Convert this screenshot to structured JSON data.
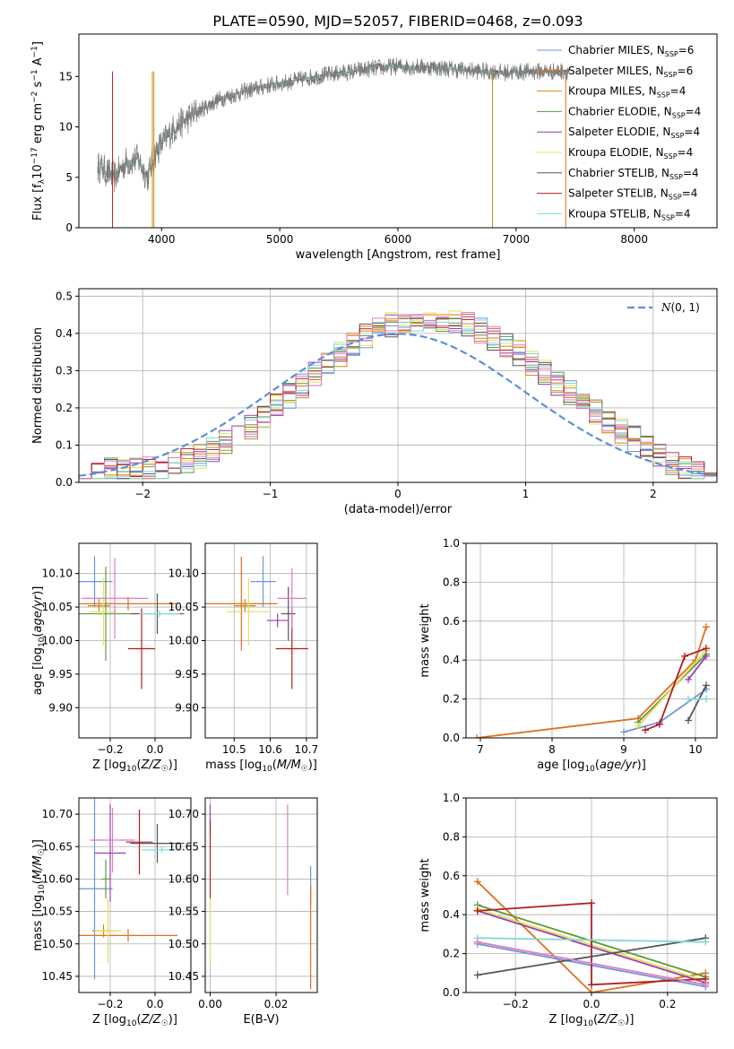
{
  "figure": {
    "title": "PLATE=0590, MJD=52057, FIBERID=0468, z=0.093"
  },
  "palette": {
    "Chabrier MILES": "#6f96d8",
    "Salpeter MILES": "#e06f1f",
    "Kroupa MILES": "#d08a0f",
    "Chabrier ELODIE": "#5b9b3a",
    "Salpeter ELODIE": "#9a3fb0",
    "Kroupa ELODIE": "#e3e05a",
    "Chabrier STELIB": "#555555",
    "Salpeter STELIB": "#b01f1f",
    "Kroupa STELIB": "#7fd8d8",
    "pink": "#e07bc4",
    "gaussian": "#5b8fd8"
  },
  "chart_data": [
    {
      "id": "spectrum",
      "type": "line",
      "title": "PLATE=0590, MJD=52057, FIBERID=0468, z=0.093",
      "xlabel": "wavelength [Angstrom, rest frame]",
      "ylabel": "Flux [f_λ 10^-17 erg cm^-2 s^-1 A^-1]",
      "xlim": [
        3300,
        8700
      ],
      "ylim": [
        0,
        19.2
      ],
      "xticks": [
        4000,
        5000,
        6000,
        7000,
        8000
      ],
      "yticks": [
        0,
        5,
        10,
        15
      ],
      "grid": false,
      "legend_position": "top-right",
      "legend": [
        {
          "name": "Chabrier MILES",
          "nssp": "6"
        },
        {
          "name": "Salpeter MILES",
          "nssp": "6"
        },
        {
          "name": "Kroupa MILES",
          "nssp": "4"
        },
        {
          "name": "Chabrier ELODIE",
          "nssp": "4"
        },
        {
          "name": "Salpeter ELODIE",
          "nssp": "4"
        },
        {
          "name": "Kroupa ELODIE",
          "nssp": "4"
        },
        {
          "name": "Chabrier STELIB",
          "nssp": "4"
        },
        {
          "name": "Salpeter STELIB",
          "nssp": "4"
        },
        {
          "name": "Kroupa STELIB",
          "nssp": "4"
        }
      ],
      "continuum_knots": [
        [
          3480,
          6.0
        ],
        [
          3600,
          5.0
        ],
        [
          3700,
          6.5
        ],
        [
          3800,
          6.8
        ],
        [
          3880,
          5.0
        ],
        [
          3950,
          7.5
        ],
        [
          4100,
          9.8
        ],
        [
          4300,
          11.5
        ],
        [
          4500,
          12.8
        ],
        [
          4700,
          13.5
        ],
        [
          4900,
          14.1
        ],
        [
          5100,
          14.5
        ],
        [
          5300,
          15.0
        ],
        [
          5500,
          15.3
        ],
        [
          5800,
          15.8
        ],
        [
          6000,
          16.0
        ],
        [
          6300,
          15.9
        ],
        [
          6600,
          15.6
        ],
        [
          6900,
          15.4
        ],
        [
          7200,
          15.5
        ],
        [
          7450,
          15.5
        ]
      ],
      "model_spikes": [
        [
          3585,
          "Salpeter STELIB"
        ],
        [
          3922,
          "Kroupa MILES"
        ],
        [
          3935,
          "Kroupa MILES"
        ],
        [
          6800,
          "Kroupa MILES"
        ],
        [
          7420,
          "Salpeter MILES"
        ]
      ],
      "x_end_of_data": 7450
    },
    {
      "id": "residuals",
      "type": "line",
      "xlabel": "(data-model)/error",
      "ylabel": "Normed distribution",
      "xlim": [
        -2.5,
        2.5
      ],
      "ylim": [
        0,
        0.52
      ],
      "xticks": [
        -2,
        -1,
        0,
        1,
        2
      ],
      "yticks": [
        0.0,
        0.1,
        0.2,
        0.3,
        0.4,
        0.5
      ],
      "grid": true,
      "legend_position": "top-right",
      "legend_label": "N(0,1)",
      "bin_width": 0.1,
      "gaussian": {
        "mean": 0,
        "sigma": 1
      },
      "histogram_peaks": [
        0.42,
        0.45,
        0.44,
        0.43,
        0.45,
        0.46,
        0.44,
        0.42,
        0.43,
        0.45,
        0.49
      ]
    },
    {
      "id": "age-vs-Z",
      "type": "scatter",
      "xlabel": "Z [log10(Z/Z☉)]",
      "ylabel": "age [log10(age/yr)]",
      "xlim": [
        -0.34,
        0.16
      ],
      "ylim": [
        9.855,
        10.145
      ],
      "xticks": [
        -0.2,
        0.0
      ],
      "yticks": [
        9.9,
        9.95,
        10.0,
        10.05,
        10.1
      ],
      "grid": true,
      "points": [
        {
          "model": "Chabrier MILES",
          "x": -0.27,
          "y": 10.088,
          "xerr": 0.08,
          "yerr": 0.038
        },
        {
          "model": "Salpeter MILES",
          "x": -0.12,
          "y": 10.055,
          "xerr": 0.22,
          "yerr": 0.01
        },
        {
          "model": "Kroupa MILES",
          "x": -0.25,
          "y": 10.052,
          "xerr": 0.05,
          "yerr": 0.01
        },
        {
          "model": "Chabrier ELODIE",
          "x": -0.22,
          "y": 10.04,
          "xerr": 0.14,
          "yerr": 0.07
        },
        {
          "model": "Kroupa ELODIE",
          "x": -0.23,
          "y": 10.043,
          "xerr": 0.06,
          "yerr": 0.05
        },
        {
          "model": "Chabrier STELIB",
          "x": 0.01,
          "y": 10.04,
          "xerr": 0.12,
          "yerr": 0.03
        },
        {
          "model": "Salpeter STELIB",
          "x": -0.06,
          "y": 9.988,
          "xerr": 0.06,
          "yerr": 0.06
        },
        {
          "model": "Kroupa STELIB",
          "x": 0.02,
          "y": 10.04,
          "xerr": 0.09,
          "yerr": 0.005
        },
        {
          "model": "pink",
          "x": -0.18,
          "y": 10.063,
          "xerr": 0.15,
          "yerr": 0.06
        }
      ]
    },
    {
      "id": "age-vs-mass",
      "type": "scatter",
      "xlabel": "mass [log10(M/M☉)]",
      "ylabel": "",
      "xlim": [
        10.42,
        10.73
      ],
      "ylim": [
        9.855,
        10.145
      ],
      "xticks": [
        10.5,
        10.6,
        10.7
      ],
      "yticks": [
        9.9,
        9.95,
        10.0,
        10.05,
        10.1
      ],
      "grid": true,
      "points": [
        {
          "model": "Chabrier MILES",
          "x": 10.58,
          "y": 10.088,
          "xerr": 0.035,
          "yerr": 0.038
        },
        {
          "model": "Salpeter MILES",
          "x": 10.52,
          "y": 10.055,
          "xerr": 0.1,
          "yerr": 0.07
        },
        {
          "model": "Kroupa MILES",
          "x": 10.53,
          "y": 10.052,
          "xerr": 0.03,
          "yerr": 0.01
        },
        {
          "model": "Kroupa ELODIE",
          "x": 10.54,
          "y": 10.043,
          "xerr": 0.06,
          "yerr": 0.05
        },
        {
          "model": "Chabrier STELIB",
          "x": 10.65,
          "y": 10.04,
          "xerr": 0.02,
          "yerr": 0.04
        },
        {
          "model": "Salpeter STELIB",
          "x": 10.66,
          "y": 9.988,
          "xerr": 0.045,
          "yerr": 0.06
        },
        {
          "model": "Salpeter ELODIE",
          "x": 10.62,
          "y": 10.03,
          "xerr": 0.03,
          "yerr": 0.01
        },
        {
          "model": "pink",
          "x": 10.66,
          "y": 10.063,
          "xerr": 0.04,
          "yerr": 0.045
        }
      ]
    },
    {
      "id": "weight-vs-age",
      "type": "line",
      "xlabel": "age [log10(age/yr)]",
      "ylabel": "mass weight",
      "xlim": [
        6.8,
        10.3
      ],
      "ylim": [
        0,
        1.0
      ],
      "xticks": [
        7,
        8,
        9,
        10
      ],
      "yticks": [
        0.0,
        0.2,
        0.4,
        0.6,
        0.8,
        1.0
      ],
      "grid": true,
      "series": [
        {
          "model": "Salpeter MILES",
          "points": [
            [
              6.95,
              0.0
            ],
            [
              9.2,
              0.1
            ],
            [
              10.0,
              0.4
            ],
            [
              10.15,
              0.57
            ]
          ]
        },
        {
          "model": "Chabrier MILES",
          "points": [
            [
              9.0,
              0.03
            ],
            [
              9.5,
              0.08
            ],
            [
              10.15,
              0.25
            ]
          ]
        },
        {
          "model": "Chabrier ELODIE",
          "points": [
            [
              9.2,
              0.08
            ],
            [
              10.15,
              0.43
            ]
          ]
        },
        {
          "model": "Kroupa ELODIE",
          "points": [
            [
              9.2,
              0.06
            ],
            [
              10.15,
              0.45
            ]
          ]
        },
        {
          "model": "Salpeter STELIB",
          "points": [
            [
              9.3,
              0.04
            ],
            [
              9.5,
              0.07
            ],
            [
              9.85,
              0.42
            ],
            [
              10.15,
              0.46
            ]
          ]
        },
        {
          "model": "Chabrier STELIB",
          "points": [
            [
              9.9,
              0.09
            ],
            [
              10.15,
              0.27
            ]
          ]
        },
        {
          "model": "Kroupa STELIB",
          "points": [
            [
              9.9,
              0.2
            ],
            [
              10.15,
              0.2
            ]
          ]
        },
        {
          "model": "Salpeter ELODIE",
          "points": [
            [
              9.9,
              0.3
            ],
            [
              10.15,
              0.42
            ]
          ]
        }
      ]
    },
    {
      "id": "mass-vs-Z",
      "type": "scatter",
      "xlabel": "Z [log10(Z/Z☉)]",
      "ylabel": "mass [log10(M/M☉)]",
      "xlim": [
        -0.34,
        0.16
      ],
      "ylim": [
        10.425,
        10.725
      ],
      "xticks": [
        -0.2,
        0.0
      ],
      "yticks": [
        10.45,
        10.5,
        10.55,
        10.6,
        10.65,
        10.7
      ],
      "grid": true,
      "points": [
        {
          "model": "Chabrier MILES",
          "x": -0.27,
          "y": 10.585,
          "xerr": 0.08,
          "yerr": 0.14
        },
        {
          "model": "Salpeter MILES",
          "x": -0.12,
          "y": 10.513,
          "xerr": 0.22,
          "yerr": 0.01
        },
        {
          "model": "Kroupa MILES",
          "x": -0.23,
          "y": 10.52,
          "xerr": 0.05,
          "yerr": 0.01
        },
        {
          "model": "Chabrier ELODIE",
          "x": -0.22,
          "y": 10.6,
          "xerr": 0.02,
          "yerr": 0.03
        },
        {
          "model": "Kroupa ELODIE",
          "x": -0.21,
          "y": 10.52,
          "xerr": 0.06,
          "yerr": 0.05
        },
        {
          "model": "Chabrier STELIB",
          "x": 0.01,
          "y": 10.655,
          "xerr": 0.12,
          "yerr": 0.03
        },
        {
          "model": "Salpeter STELIB",
          "x": -0.07,
          "y": 10.657,
          "xerr": 0.06,
          "yerr": 0.05
        },
        {
          "model": "Salpeter ELODIE",
          "x": -0.2,
          "y": 10.64,
          "xerr": 0.07,
          "yerr": 0.075
        },
        {
          "model": "Kroupa STELIB",
          "x": 0.03,
          "y": 10.645,
          "xerr": 0.09,
          "yerr": 0.005
        },
        {
          "model": "pink",
          "x": -0.19,
          "y": 10.66,
          "xerr": 0.1,
          "yerr": 0.05
        }
      ]
    },
    {
      "id": "mass-vs-EBV",
      "type": "scatter",
      "xlabel": "E(B-V)",
      "ylabel": "",
      "xlim": [
        -0.0015,
        0.0325
      ],
      "ylim": [
        10.425,
        10.725
      ],
      "xticks": [
        0.0,
        0.02
      ],
      "yticks": [
        10.45,
        10.5,
        10.55,
        10.6,
        10.65,
        10.7
      ],
      "grid": true,
      "points": [
        {
          "model": "Salpeter ELODIE",
          "x": 0.0,
          "y": 10.69,
          "xerr": 0,
          "yerr": 0.025
        },
        {
          "model": "Salpeter STELIB",
          "x": 0.0,
          "y": 10.63,
          "xerr": 0,
          "yerr": 0.06
        },
        {
          "model": "Kroupa ELODIE",
          "x": 0.0,
          "y": 10.52,
          "xerr": 0,
          "yerr": 0.05
        },
        {
          "model": "pink",
          "x": 0.0235,
          "y": 10.645,
          "xerr": 0,
          "yerr": 0.07
        },
        {
          "model": "Chabrier MILES",
          "x": 0.0305,
          "y": 10.59,
          "xerr": 0,
          "yerr": 0.03
        },
        {
          "model": "Salpeter MILES",
          "x": 0.0305,
          "y": 10.51,
          "xerr": 0,
          "yerr": 0.08
        }
      ]
    },
    {
      "id": "weight-vs-Z",
      "type": "line",
      "xlabel": "Z [log10(Z/Z☉)]",
      "ylabel": "mass weight",
      "xlim": [
        -0.33,
        0.33
      ],
      "ylim": [
        0,
        1.0
      ],
      "xticks": [
        -0.2,
        0.0,
        0.2
      ],
      "yticks": [
        0.0,
        0.2,
        0.4,
        0.6,
        0.8,
        1.0
      ],
      "grid": true,
      "series": [
        {
          "model": "Salpeter MILES",
          "points": [
            [
              -0.3,
              0.57
            ],
            [
              0.0,
              0.0
            ],
            [
              0.3,
              0.1
            ]
          ]
        },
        {
          "model": "Chabrier MILES",
          "points": [
            [
              -0.3,
              0.25
            ],
            [
              0.3,
              0.03
            ]
          ]
        },
        {
          "model": "Chabrier ELODIE",
          "points": [
            [
              -0.3,
              0.45
            ],
            [
              0.3,
              0.08
            ]
          ]
        },
        {
          "model": "Kroupa ELODIE",
          "points": [
            [
              -0.3,
              0.43
            ],
            [
              0.3,
              0.06
            ]
          ]
        },
        {
          "model": "Salpeter ELODIE",
          "points": [
            [
              -0.3,
              0.42
            ],
            [
              0.3,
              0.05
            ]
          ]
        },
        {
          "model": "Salpeter STELIB",
          "points": [
            [
              -0.3,
              0.42
            ],
            [
              0.0,
              0.46
            ],
            [
              0.0,
              0.04
            ],
            [
              0.3,
              0.07
            ]
          ]
        },
        {
          "model": "Chabrier STELIB",
          "points": [
            [
              -0.3,
              0.09
            ],
            [
              0.3,
              0.28
            ]
          ]
        },
        {
          "model": "Kroupa STELIB",
          "points": [
            [
              -0.3,
              0.28
            ],
            [
              0.3,
              0.26
            ]
          ]
        },
        {
          "model": "pink",
          "points": [
            [
              -0.3,
              0.26
            ],
            [
              0.3,
              0.04
            ]
          ]
        }
      ]
    }
  ]
}
